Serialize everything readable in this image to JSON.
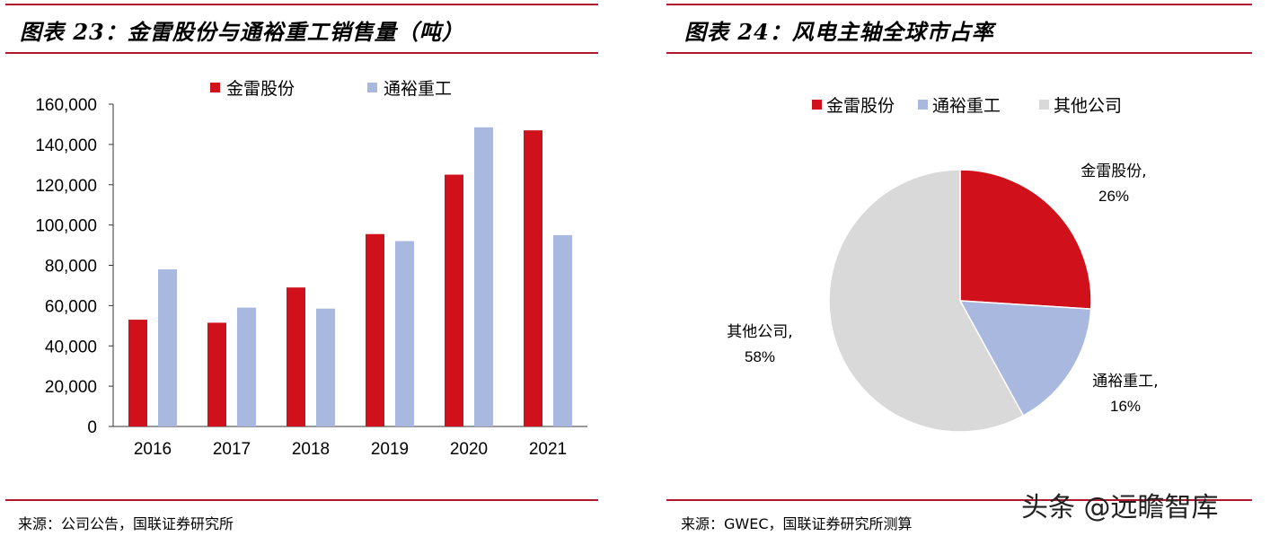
{
  "colors": {
    "red": "#d0111b",
    "blue": "#a9b8df",
    "gray": "#d9d9d9",
    "rule": "#b0182b"
  },
  "left": {
    "title": "图表 23：金雷股份与通裕重工销售量（吨）",
    "source": "来源：公司公告，国联证券研究所"
  },
  "right": {
    "title": "图表 24：风电主轴全球市占率",
    "source": "来源：GWEC，国联证券研究所测算"
  },
  "watermark": "头条 @远瞻智库",
  "chart_data": [
    {
      "type": "bar",
      "categories": [
        "2016",
        "2017",
        "2018",
        "2019",
        "2020",
        "2021"
      ],
      "series": [
        {
          "name": "金雷股份",
          "color": "#d0111b",
          "values": [
            53000,
            51500,
            69000,
            95500,
            125000,
            147000
          ]
        },
        {
          "name": "通裕重工",
          "color": "#a9b8df",
          "values": [
            78000,
            59000,
            58500,
            92000,
            148500,
            95000
          ]
        }
      ],
      "ylim": [
        0,
        160000
      ],
      "yticks": [
        "0",
        "20,000",
        "40,000",
        "60,000",
        "80,000",
        "100,000",
        "120,000",
        "140,000",
        "160,000"
      ],
      "legend": "top"
    },
    {
      "type": "pie",
      "labels": [
        "金雷股份",
        "通裕重工",
        "其他公司"
      ],
      "values": [
        26,
        16,
        58
      ],
      "value_labels": [
        "26%",
        "16%",
        "58%"
      ],
      "colors": [
        "#d0111b",
        "#a9b8df",
        "#d9d9d9"
      ],
      "legend": "top"
    }
  ]
}
